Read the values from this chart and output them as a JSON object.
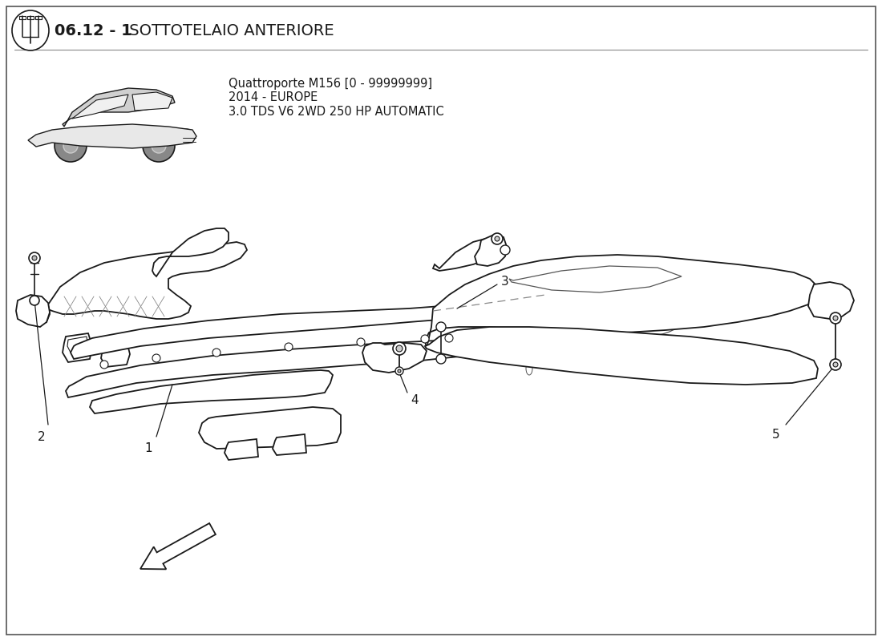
{
  "title_bold": "06.12 - 1",
  "title_normal": " SOTTOTELAIO ANTERIORE",
  "subtitle_line1": "Quattroporte M156 [0 - 99999999]",
  "subtitle_line2": "2014 - EUROPE",
  "subtitle_line3": "3.0 TDS V6 2WD 250 HP AUTOMATIC",
  "background_color": "#ffffff",
  "line_color": "#1a1a1a",
  "title_fontsize": 14,
  "subtitle_fontsize": 10.5,
  "label_fontsize": 11
}
